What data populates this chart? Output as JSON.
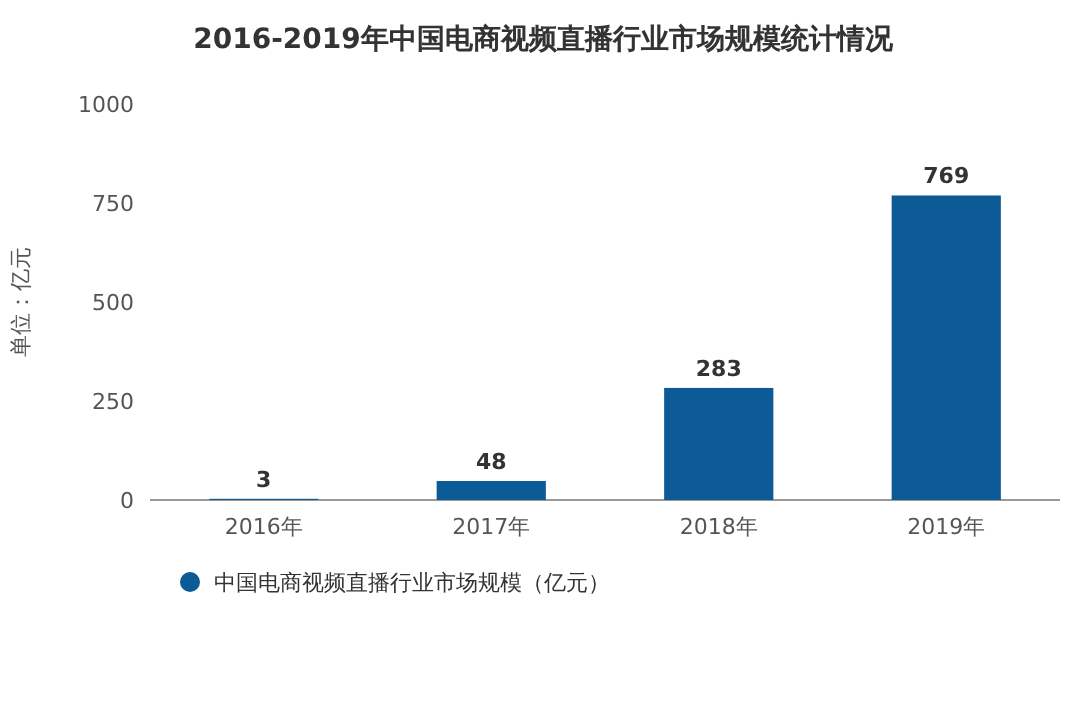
{
  "chart_data": {
    "type": "bar",
    "title": "2016-2019年中国电商视频直播行业市场规模统计情况",
    "ylabel": "单位：亿元",
    "categories": [
      "2016年",
      "2017年",
      "2018年",
      "2019年"
    ],
    "series": [
      {
        "name": "中国电商视频直播行业市场规模（亿元）",
        "color": "#0c5a96",
        "values": [
          3,
          48,
          283,
          769
        ]
      }
    ],
    "ylim": [
      0,
      1000
    ],
    "yticks": [
      0,
      250,
      500,
      750,
      1000
    ],
    "data_labels": true,
    "legend": "bottom"
  }
}
